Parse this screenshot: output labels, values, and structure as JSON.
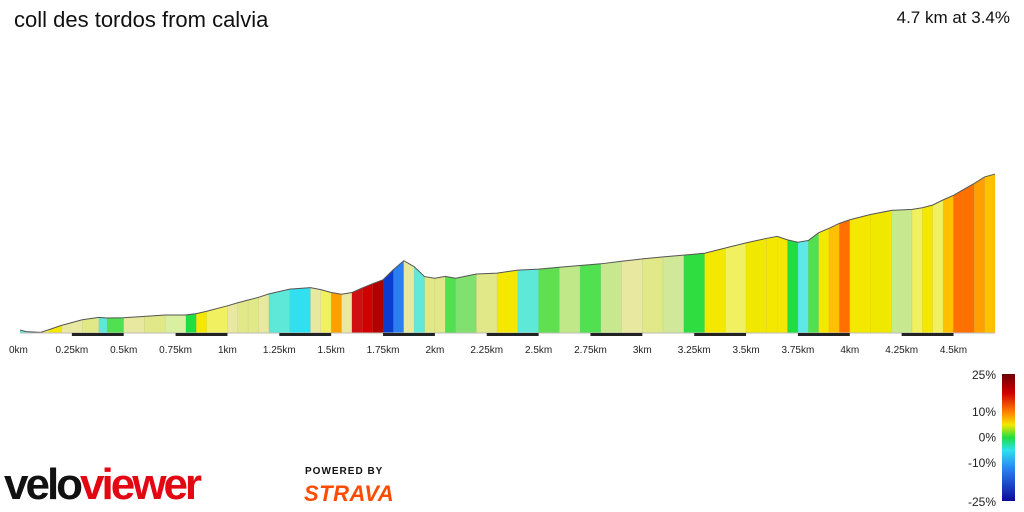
{
  "header": {
    "title": "coll des tordos from calvia",
    "summary": "4.7 km at 3.4%"
  },
  "branding": {
    "logo_part1": "velo",
    "logo_part2": "viewer",
    "powered_by": "POWERED BY",
    "strava": "STRAVA",
    "logo_color": "#e30613"
  },
  "chart_data": {
    "type": "area",
    "title": "",
    "xlabel": "",
    "ylabel": "",
    "x_tick_labels": [
      "0km",
      "0.25km",
      "0.5km",
      "0.75km",
      "1km",
      "1.25km",
      "1.5km",
      "1.75km",
      "2km",
      "2.25km",
      "2.5km",
      "2.75km",
      "3km",
      "3.25km",
      "3.5km",
      "3.75km",
      "4km",
      "4.25km",
      "4.5km"
    ],
    "x_tick_values": [
      0,
      0.25,
      0.5,
      0.75,
      1,
      1.25,
      1.5,
      1.75,
      2,
      2.25,
      2.5,
      2.75,
      3,
      3.25,
      3.5,
      3.75,
      4,
      4.25,
      4.5
    ],
    "xlim": [
      0,
      4.7
    ],
    "series": [
      {
        "distance_km": [
          0,
          0.03,
          0.1,
          0.14,
          0.2,
          0.3,
          0.38,
          0.42,
          0.5,
          0.6,
          0.7,
          0.8,
          0.85,
          0.9,
          1.0,
          1.05,
          1.1,
          1.15,
          1.2,
          1.3,
          1.4,
          1.45,
          1.5,
          1.55,
          1.6,
          1.65,
          1.7,
          1.75,
          1.8,
          1.85,
          1.9,
          1.95,
          2.0,
          2.05,
          2.1,
          2.2,
          2.3,
          2.4,
          2.5,
          2.6,
          2.7,
          2.8,
          2.9,
          3.0,
          3.1,
          3.2,
          3.3,
          3.4,
          3.5,
          3.6,
          3.65,
          3.7,
          3.75,
          3.8,
          3.85,
          3.9,
          3.95,
          4.0,
          4.1,
          4.2,
          4.3,
          4.35,
          4.4,
          4.45,
          4.5,
          4.55,
          4.6,
          4.65,
          4.7
        ],
        "relative_elevation": [
          0.018,
          0.008,
          0.004,
          0.02,
          0.045,
          0.078,
          0.092,
          0.088,
          0.09,
          0.098,
          0.106,
          0.106,
          0.114,
          0.128,
          0.16,
          0.178,
          0.194,
          0.21,
          0.23,
          0.258,
          0.267,
          0.255,
          0.238,
          0.228,
          0.238,
          0.265,
          0.29,
          0.313,
          0.373,
          0.425,
          0.39,
          0.332,
          0.322,
          0.333,
          0.322,
          0.347,
          0.352,
          0.37,
          0.376,
          0.387,
          0.397,
          0.407,
          0.422,
          0.436,
          0.448,
          0.458,
          0.469,
          0.5,
          0.53,
          0.557,
          0.568,
          0.548,
          0.534,
          0.544,
          0.59,
          0.616,
          0.645,
          0.666,
          0.697,
          0.721,
          0.727,
          0.737,
          0.753,
          0.783,
          0.81,
          0.845,
          0.88,
          0.918,
          0.935
        ]
      }
    ],
    "gradient_scale": {
      "labels": [
        "25%",
        "10%",
        "0%",
        "-10%",
        "-25%"
      ],
      "values": [
        25,
        10,
        0,
        -10,
        -25
      ]
    },
    "segment_colors": [
      "#5ee8d8",
      "#5ee8d8",
      "#f0f060",
      "#f5e800",
      "#e8e8a0",
      "#e0e888",
      "#5ee8d8",
      "#50e050",
      "#e8e8a0",
      "#e0e888",
      "#d8f0a0",
      "#20dd40",
      "#f5e800",
      "#f0f060",
      "#e8e8a0",
      "#e0e888",
      "#e0e888",
      "#e8e8a0",
      "#5ee8d8",
      "#30e0f0",
      "#e8e8a0",
      "#f0f060",
      "#ffa000",
      "#e8e8a0",
      "#d01010",
      "#d00000",
      "#b00000",
      "#0a3dcf",
      "#2a80f0",
      "#e8e8a0",
      "#60e8d8",
      "#e0e888",
      "#e0e888",
      "#50e050",
      "#80e070",
      "#e0e888",
      "#f5e800",
      "#5ee8d8",
      "#60e050",
      "#c0e888",
      "#50e050",
      "#c8e890",
      "#e8e8a0",
      "#e0e888",
      "#d0e898",
      "#30dd40",
      "#f5e800",
      "#f0f060",
      "#f0e800",
      "#f5e800",
      "#f5e800",
      "#20dd40",
      "#5ee8e8",
      "#50e050",
      "#f5e800",
      "#ffc000",
      "#ff7000",
      "#f5e800",
      "#f0e800",
      "#c8e890",
      "#f0f060",
      "#f5e800",
      "#f0f060",
      "#ffc000",
      "#ff7000",
      "#ff7000",
      "#ffa000",
      "#ffc000"
    ]
  }
}
